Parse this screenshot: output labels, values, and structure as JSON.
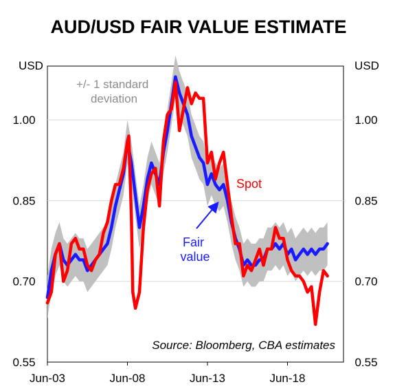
{
  "chart_data": {
    "type": "line",
    "title": "AUD/USD FAIR VALUE ESTIMATE",
    "ylabel_left": "USD",
    "ylabel_right": "USD",
    "ylim": [
      0.55,
      1.1
    ],
    "yticks": [
      0.55,
      0.7,
      0.85,
      1.0
    ],
    "ytick_labels": [
      "0.55",
      "0.70",
      "0.85",
      "1.00"
    ],
    "xlim": [
      "2003-06",
      "2021-12"
    ],
    "xticks": [
      "2003-06",
      "2008-06",
      "2013-06",
      "2018-06"
    ],
    "xtick_labels": [
      "Jun-03",
      "Jun-08",
      "Jun-13",
      "Jun-18"
    ],
    "grid": "horizontal",
    "annotations": {
      "band": "+/- 1 standard deviation",
      "spot": "Spot",
      "fair_value": "Fair value",
      "source": "Source: Bloomberg, CBA estimates"
    },
    "band_color": "#c0c0c0",
    "band_halfwidth": 0.04,
    "series": [
      {
        "name": "Spot",
        "color": "#ff0000",
        "points": [
          [
            "2003-06",
            0.66
          ],
          [
            "2003-09",
            0.68
          ],
          [
            "2003-12",
            0.75
          ],
          [
            "2004-03",
            0.77
          ],
          [
            "2004-06",
            0.7
          ],
          [
            "2004-09",
            0.72
          ],
          [
            "2004-12",
            0.77
          ],
          [
            "2005-03",
            0.78
          ],
          [
            "2005-06",
            0.76
          ],
          [
            "2005-09",
            0.76
          ],
          [
            "2005-12",
            0.73
          ],
          [
            "2006-03",
            0.72
          ],
          [
            "2006-06",
            0.74
          ],
          [
            "2006-09",
            0.75
          ],
          [
            "2006-12",
            0.79
          ],
          [
            "2007-03",
            0.81
          ],
          [
            "2007-06",
            0.85
          ],
          [
            "2007-09",
            0.88
          ],
          [
            "2007-12",
            0.88
          ],
          [
            "2008-03",
            0.91
          ],
          [
            "2008-06",
            0.96
          ],
          [
            "2008-07",
            0.97
          ],
          [
            "2008-09",
            0.82
          ],
          [
            "2008-10",
            0.68
          ],
          [
            "2008-12",
            0.65
          ],
          [
            "2009-03",
            0.68
          ],
          [
            "2009-06",
            0.8
          ],
          [
            "2009-09",
            0.87
          ],
          [
            "2009-12",
            0.9
          ],
          [
            "2010-03",
            0.91
          ],
          [
            "2010-06",
            0.84
          ],
          [
            "2010-09",
            0.96
          ],
          [
            "2010-12",
            1.01
          ],
          [
            "2011-03",
            1.02
          ],
          [
            "2011-06",
            1.07
          ],
          [
            "2011-09",
            0.98
          ],
          [
            "2011-12",
            1.02
          ],
          [
            "2012-03",
            1.06
          ],
          [
            "2012-06",
            1.03
          ],
          [
            "2012-09",
            1.05
          ],
          [
            "2012-12",
            1.04
          ],
          [
            "2013-03",
            1.04
          ],
          [
            "2013-06",
            0.92
          ],
          [
            "2013-09",
            0.94
          ],
          [
            "2013-12",
            0.89
          ],
          [
            "2014-03",
            0.92
          ],
          [
            "2014-06",
            0.94
          ],
          [
            "2014-09",
            0.88
          ],
          [
            "2014-12",
            0.82
          ],
          [
            "2015-03",
            0.77
          ],
          [
            "2015-06",
            0.77
          ],
          [
            "2015-09",
            0.71
          ],
          [
            "2015-12",
            0.73
          ],
          [
            "2016-03",
            0.72
          ],
          [
            "2016-06",
            0.74
          ],
          [
            "2016-09",
            0.76
          ],
          [
            "2016-12",
            0.73
          ],
          [
            "2017-03",
            0.76
          ],
          [
            "2017-06",
            0.76
          ],
          [
            "2017-09",
            0.8
          ],
          [
            "2017-12",
            0.78
          ],
          [
            "2018-03",
            0.78
          ],
          [
            "2018-06",
            0.74
          ],
          [
            "2018-09",
            0.72
          ],
          [
            "2018-12",
            0.71
          ],
          [
            "2019-03",
            0.71
          ],
          [
            "2019-06",
            0.7
          ],
          [
            "2019-09",
            0.68
          ],
          [
            "2019-12",
            0.69
          ],
          [
            "2020-03",
            0.62
          ],
          [
            "2020-06",
            0.68
          ],
          [
            "2020-09",
            0.72
          ],
          [
            "2020-12",
            0.71
          ]
        ]
      },
      {
        "name": "Fair value",
        "color": "#1a1aff",
        "points": [
          [
            "2003-06",
            0.67
          ],
          [
            "2003-09",
            0.72
          ],
          [
            "2003-12",
            0.75
          ],
          [
            "2004-03",
            0.77
          ],
          [
            "2004-06",
            0.74
          ],
          [
            "2004-09",
            0.73
          ],
          [
            "2004-12",
            0.74
          ],
          [
            "2005-03",
            0.75
          ],
          [
            "2005-06",
            0.74
          ],
          [
            "2005-09",
            0.74
          ],
          [
            "2005-12",
            0.72
          ],
          [
            "2006-03",
            0.73
          ],
          [
            "2006-06",
            0.74
          ],
          [
            "2006-09",
            0.75
          ],
          [
            "2006-12",
            0.76
          ],
          [
            "2007-03",
            0.77
          ],
          [
            "2007-06",
            0.8
          ],
          [
            "2007-09",
            0.84
          ],
          [
            "2007-12",
            0.87
          ],
          [
            "2008-03",
            0.9
          ],
          [
            "2008-06",
            0.96
          ],
          [
            "2008-09",
            0.92
          ],
          [
            "2008-12",
            0.86
          ],
          [
            "2009-03",
            0.8
          ],
          [
            "2009-06",
            0.84
          ],
          [
            "2009-09",
            0.89
          ],
          [
            "2009-12",
            0.92
          ],
          [
            "2010-03",
            0.9
          ],
          [
            "2010-06",
            0.88
          ],
          [
            "2010-09",
            0.94
          ],
          [
            "2010-12",
            0.98
          ],
          [
            "2011-03",
            1.03
          ],
          [
            "2011-06",
            1.08
          ],
          [
            "2011-09",
            1.05
          ],
          [
            "2011-12",
            1.03
          ],
          [
            "2012-03",
            1.01
          ],
          [
            "2012-06",
            0.97
          ],
          [
            "2012-09",
            0.95
          ],
          [
            "2012-12",
            0.93
          ],
          [
            "2013-03",
            0.92
          ],
          [
            "2013-06",
            0.88
          ],
          [
            "2013-09",
            0.9
          ],
          [
            "2013-12",
            0.88
          ],
          [
            "2014-03",
            0.87
          ],
          [
            "2014-06",
            0.88
          ],
          [
            "2014-09",
            0.85
          ],
          [
            "2014-12",
            0.81
          ],
          [
            "2015-03",
            0.78
          ],
          [
            "2015-06",
            0.76
          ],
          [
            "2015-09",
            0.73
          ],
          [
            "2015-12",
            0.74
          ],
          [
            "2016-03",
            0.73
          ],
          [
            "2016-06",
            0.73
          ],
          [
            "2016-09",
            0.74
          ],
          [
            "2016-12",
            0.74
          ],
          [
            "2017-03",
            0.76
          ],
          [
            "2017-06",
            0.76
          ],
          [
            "2017-09",
            0.77
          ],
          [
            "2017-12",
            0.76
          ],
          [
            "2018-03",
            0.77
          ],
          [
            "2018-06",
            0.75
          ],
          [
            "2018-09",
            0.76
          ],
          [
            "2018-12",
            0.74
          ],
          [
            "2019-03",
            0.75
          ],
          [
            "2019-06",
            0.76
          ],
          [
            "2019-09",
            0.75
          ],
          [
            "2019-12",
            0.76
          ],
          [
            "2020-03",
            0.75
          ],
          [
            "2020-06",
            0.76
          ],
          [
            "2020-09",
            0.76
          ],
          [
            "2020-12",
            0.77
          ]
        ]
      }
    ]
  }
}
